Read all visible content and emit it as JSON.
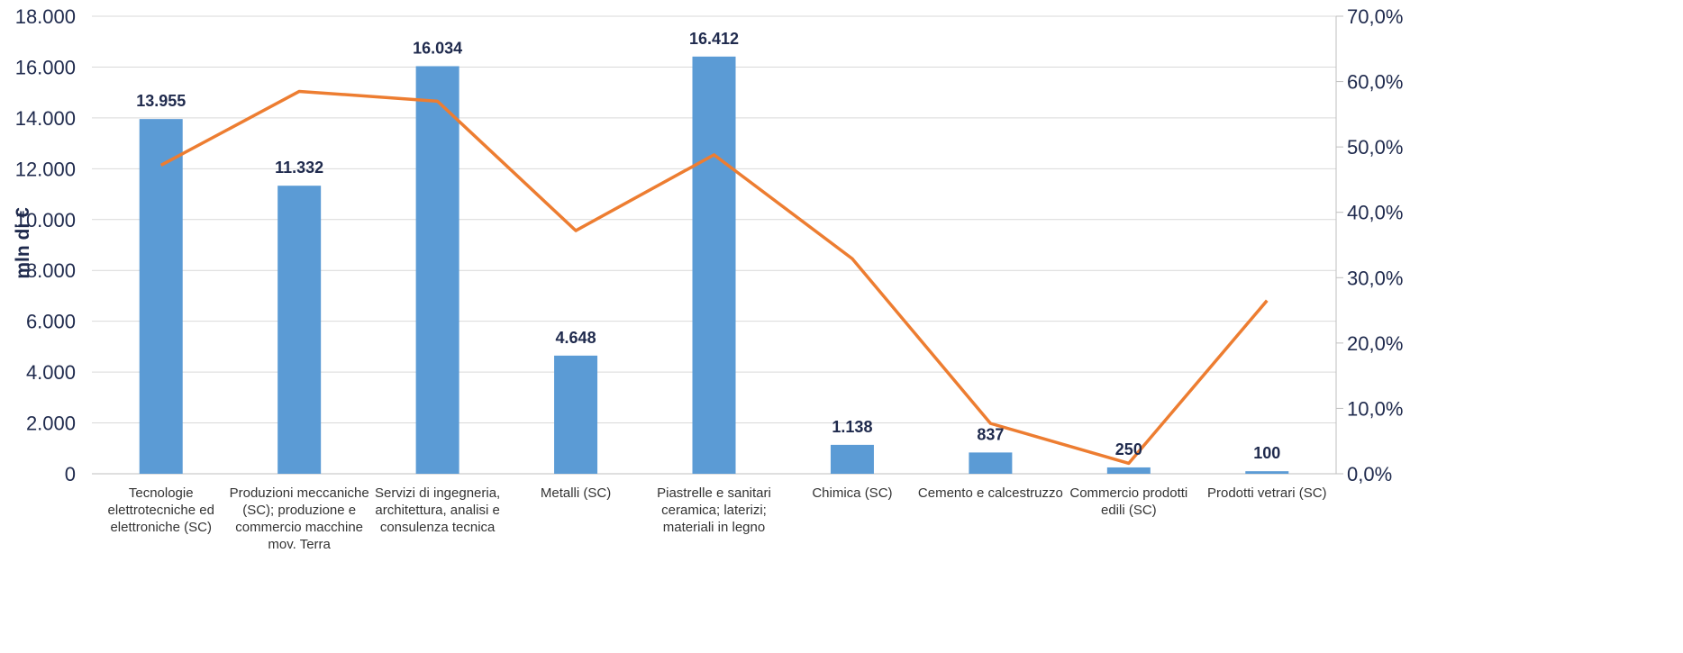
{
  "chart_data": {
    "type": "bar",
    "ylabel": "mln di €",
    "ylim": [
      0,
      18000
    ],
    "y2lim": [
      0,
      70
    ],
    "y_ticks": [
      "0",
      "2.000",
      "4.000",
      "6.000",
      "8.000",
      "10.000",
      "12.000",
      "14.000",
      "16.000",
      "18.000"
    ],
    "y2_ticks": [
      "0,0%",
      "10,0%",
      "20,0%",
      "30,0%",
      "40,0%",
      "50,0%",
      "60,0%",
      "70,0%"
    ],
    "grid": true,
    "categories": [
      [
        "Tecnologie",
        "elettrotecniche ed",
        "elettroniche (SC)"
      ],
      [
        "Produzioni meccaniche",
        "(SC); produzione e",
        "commercio macchine",
        "mov. Terra"
      ],
      [
        "Servizi di ingegneria,",
        "architettura, analisi e",
        "consulenza tecnica"
      ],
      [
        "Metalli (SC)"
      ],
      [
        "Piastrelle e sanitari",
        "ceramica; laterizi;",
        "materiali in legno"
      ],
      [
        "Chimica (SC)"
      ],
      [
        "Cemento e calcestruzzo"
      ],
      [
        "Commercio prodotti",
        "edili (SC)"
      ],
      [
        "Prodotti vetrari (SC)"
      ]
    ],
    "series": [
      {
        "type": "bar",
        "axis": "left",
        "color": "#5b9bd5",
        "values": [
          13955,
          11332,
          16034,
          4648,
          16412,
          1138,
          837,
          250,
          100
        ],
        "labels": [
          "13.955",
          "11.332",
          "16.034",
          "4.648",
          "16.412",
          "1.138",
          "837",
          "250",
          "100"
        ]
      },
      {
        "type": "line",
        "axis": "right",
        "color": "#ed7d31",
        "values": [
          47.2,
          58.5,
          57.0,
          37.2,
          48.8,
          32.9,
          7.7,
          1.6,
          26.5
        ]
      }
    ]
  }
}
